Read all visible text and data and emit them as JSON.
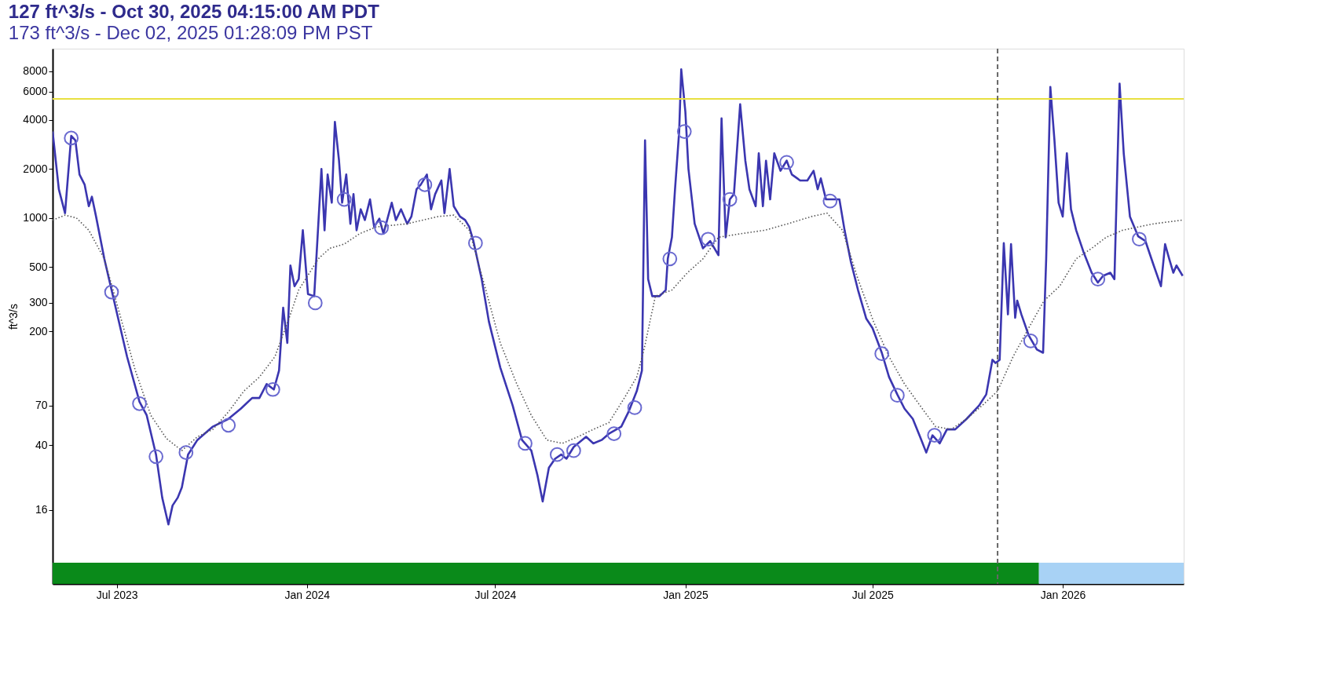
{
  "chart_data": {
    "type": "line",
    "title": "127 ft^3/s - Oct 30, 2025 04:15:00 AM PDT",
    "subtitle": "173 ft^3/s - Dec 02, 2025 01:28:09 PM PST",
    "ylabel": "ft^3/s",
    "xlim": [
      "2023-04-30",
      "2026-04-28"
    ],
    "xticks": [
      {
        "value": "2023-07-01",
        "label": "Jul 2023"
      },
      {
        "value": "2024-01-01",
        "label": "Jan 2024"
      },
      {
        "value": "2024-07-01",
        "label": "Jul 2024"
      },
      {
        "value": "2025-01-01",
        "label": "Jan 2025"
      },
      {
        "value": "2025-07-01",
        "label": "Jul 2025"
      },
      {
        "value": "2026-01-01",
        "label": "Jan 2026"
      }
    ],
    "ylim": [
      5.6,
      11000
    ],
    "yticks": [
      16,
      40,
      70,
      200,
      300,
      500,
      1000,
      2000,
      4000,
      6000,
      8000
    ],
    "log": "y",
    "grid": false,
    "legend": false,
    "ref_lines": [
      {
        "axis": "y",
        "value": 5400,
        "color": "#e8e040",
        "line_style": "solid"
      },
      {
        "axis": "x",
        "value": "2025-10-30",
        "color": "#666666",
        "line_style": "dashed"
      }
    ],
    "bands": [
      {
        "axis": "x",
        "from": "2023-04-30",
        "to": "2025-12-09",
        "color": "#0a8a1a"
      },
      {
        "axis": "x",
        "from": "2025-12-09",
        "to": "2026-04-28",
        "color": "#a8d2f5"
      }
    ],
    "series": [
      {
        "type": "line",
        "color": "#3b36b0",
        "line_style": "solid",
        "marker": "none",
        "x": [
          "2023-04-30",
          "2023-05-06",
          "2023-05-12",
          "2023-05-18",
          "2023-05-22",
          "2023-05-26",
          "2023-05-31",
          "2023-06-04",
          "2023-06-07",
          "2023-06-11",
          "2023-06-19",
          "2023-06-26",
          "2023-07-11",
          "2023-07-23",
          "2023-07-30",
          "2023-08-08",
          "2023-08-14",
          "2023-08-20",
          "2023-08-24",
          "2023-08-29",
          "2023-09-02",
          "2023-09-08",
          "2023-09-17",
          "2023-10-02",
          "2023-10-17",
          "2023-10-29",
          "2023-11-09",
          "2023-11-16",
          "2023-11-23",
          "2023-11-30",
          "2023-12-05",
          "2023-12-09",
          "2023-12-13",
          "2023-12-16",
          "2023-12-20",
          "2023-12-24",
          "2023-12-28",
          "2024-01-02",
          "2024-01-08",
          "2024-01-12",
          "2024-01-15",
          "2024-01-18",
          "2024-01-21",
          "2024-01-25",
          "2024-01-28",
          "2024-02-01",
          "2024-02-04",
          "2024-02-08",
          "2024-02-12",
          "2024-02-15",
          "2024-02-18",
          "2024-02-22",
          "2024-02-26",
          "2024-03-02",
          "2024-03-06",
          "2024-03-11",
          "2024-03-15",
          "2024-03-23",
          "2024-03-27",
          "2024-04-01",
          "2024-04-07",
          "2024-04-11",
          "2024-04-16",
          "2024-04-20",
          "2024-04-26",
          "2024-04-30",
          "2024-05-04",
          "2024-05-10",
          "2024-05-13",
          "2024-05-18",
          "2024-05-22",
          "2024-05-28",
          "2024-06-02",
          "2024-06-06",
          "2024-06-10",
          "2024-06-18",
          "2024-06-25",
          "2024-07-06",
          "2024-07-18",
          "2024-07-27",
          "2024-08-05",
          "2024-08-11",
          "2024-08-16",
          "2024-08-22",
          "2024-08-28",
          "2024-09-03",
          "2024-09-08",
          "2024-09-15",
          "2024-09-27",
          "2024-10-04",
          "2024-10-12",
          "2024-10-19",
          "2024-10-31",
          "2024-11-07",
          "2024-11-15",
          "2024-11-20",
          "2024-11-23",
          "2024-11-26",
          "2024-11-30",
          "2024-12-07",
          "2024-12-13",
          "2024-12-15",
          "2024-12-19",
          "2024-12-22",
          "2024-12-26",
          "2024-12-28",
          "2025-01-01",
          "2025-01-04",
          "2025-01-10",
          "2025-01-18",
          "2025-01-25",
          "2025-02-02",
          "2025-02-05",
          "2025-02-09",
          "2025-02-13",
          "2025-02-17",
          "2025-02-23",
          "2025-02-28",
          "2025-03-04",
          "2025-03-10",
          "2025-03-13",
          "2025-03-17",
          "2025-03-20",
          "2025-03-24",
          "2025-03-28",
          "2025-04-03",
          "2025-04-09",
          "2025-04-14",
          "2025-04-22",
          "2025-04-29",
          "2025-05-05",
          "2025-05-09",
          "2025-05-12",
          "2025-05-17",
          "2025-05-30",
          "2025-06-04",
          "2025-06-10",
          "2025-06-17",
          "2025-06-25",
          "2025-07-01",
          "2025-07-10",
          "2025-07-17",
          "2025-07-25",
          "2025-08-01",
          "2025-08-09",
          "2025-08-16",
          "2025-08-22",
          "2025-08-28",
          "2025-09-04",
          "2025-09-11",
          "2025-09-19",
          "2025-09-30",
          "2025-10-12",
          "2025-10-19",
          "2025-10-25",
          "2025-10-28",
          "2025-11-01",
          "2025-11-05",
          "2025-11-09",
          "2025-11-12",
          "2025-11-16",
          "2025-11-18",
          "2025-11-22",
          "2025-11-29",
          "2025-12-07",
          "2025-12-13",
          "2025-12-16",
          "2025-12-20",
          "2025-12-24",
          "2025-12-28",
          "2026-01-01",
          "2026-01-05",
          "2026-01-09",
          "2026-01-14",
          "2026-01-21",
          "2026-01-29",
          "2026-02-04",
          "2026-02-09",
          "2026-02-16",
          "2026-02-20",
          "2026-02-25",
          "2026-03-01",
          "2026-03-07",
          "2026-03-15",
          "2026-03-22",
          "2026-03-30",
          "2026-04-06",
          "2026-04-10",
          "2026-04-14",
          "2026-04-18",
          "2026-04-21",
          "2026-04-27"
        ],
        "values": [
          3400,
          1500,
          1070,
          3200,
          3000,
          1850,
          1600,
          1180,
          1350,
          1020,
          560,
          360,
          140,
          74,
          61,
          35,
          19,
          13,
          17,
          19,
          22,
          35,
          43,
          52,
          58,
          67,
          78,
          78,
          95,
          88,
          115,
          280,
          170,
          510,
          380,
          420,
          840,
          340,
          330,
          920,
          2000,
          840,
          1850,
          1240,
          3900,
          2250,
          1240,
          1850,
          920,
          1400,
          840,
          1130,
          970,
          1300,
          880,
          990,
          800,
          1240,
          970,
          1130,
          920,
          1020,
          1500,
          1600,
          1850,
          1130,
          1400,
          1700,
          1070,
          2000,
          1180,
          1020,
          970,
          880,
          720,
          420,
          230,
          120,
          70,
          43,
          37,
          26,
          18,
          29,
          33,
          35,
          33,
          39,
          45,
          41,
          43,
          47,
          52,
          64,
          86,
          115,
          3000,
          420,
          330,
          330,
          360,
          560,
          760,
          1500,
          3400,
          8200,
          4500,
          2000,
          920,
          650,
          720,
          590,
          4100,
          760,
          1300,
          1400,
          5000,
          2250,
          1500,
          1180,
          2500,
          1180,
          2250,
          1300,
          2500,
          1950,
          2250,
          1850,
          1700,
          1700,
          1950,
          1500,
          1750,
          1300,
          1300,
          840,
          540,
          360,
          240,
          210,
          148,
          105,
          82,
          67,
          58,
          45,
          36,
          46,
          41,
          50,
          50,
          58,
          70,
          82,
          134,
          128,
          134,
          700,
          255,
          690,
          243,
          310,
          255,
          190,
          155,
          148,
          560,
          6400,
          3000,
          1240,
          1020,
          2500,
          1130,
          840,
          620,
          460,
          400,
          440,
          460,
          420,
          6700,
          2500,
          1020,
          770,
          720,
          510,
          380,
          690,
          560,
          460,
          510,
          440
        ]
      },
      {
        "type": "line",
        "color": "#555555",
        "line_style": "dotted",
        "marker": "none",
        "x": [
          "2023-04-30",
          "2023-05-12",
          "2023-05-23",
          "2023-06-04",
          "2023-06-19",
          "2023-07-04",
          "2023-07-19",
          "2023-08-03",
          "2023-08-18",
          "2023-09-02",
          "2023-09-17",
          "2023-10-02",
          "2023-10-17",
          "2023-11-01",
          "2023-11-16",
          "2023-12-01",
          "2023-12-16",
          "2023-12-24",
          "2024-01-12",
          "2024-01-23",
          "2024-02-06",
          "2024-02-21",
          "2024-03-08",
          "2024-03-23",
          "2024-04-07",
          "2024-04-22",
          "2024-05-07",
          "2024-05-22",
          "2024-06-06",
          "2024-06-21",
          "2024-07-06",
          "2024-07-22",
          "2024-08-05",
          "2024-08-20",
          "2024-09-04",
          "2024-09-19",
          "2024-10-04",
          "2024-10-19",
          "2024-11-03",
          "2024-11-15",
          "2024-11-22",
          "2024-12-03",
          "2024-12-19",
          "2025-01-03",
          "2025-01-18",
          "2025-02-02",
          "2025-02-24",
          "2025-03-19",
          "2025-04-10",
          "2025-05-03",
          "2025-05-18",
          "2025-06-02",
          "2025-06-17",
          "2025-07-02",
          "2025-07-17",
          "2025-08-01",
          "2025-08-16",
          "2025-08-31",
          "2025-09-15",
          "2025-09-30",
          "2025-10-15",
          "2025-10-30",
          "2025-11-14",
          "2025-11-29",
          "2025-12-14",
          "2025-12-29",
          "2026-01-14",
          "2026-01-29",
          "2026-02-12",
          "2026-02-28",
          "2026-03-15",
          "2026-03-30",
          "2026-04-27"
        ],
        "values": [
          970,
          1040,
          1000,
          840,
          560,
          255,
          115,
          61,
          44,
          37,
          45,
          50,
          64,
          86,
          105,
          140,
          255,
          360,
          560,
          650,
          690,
          800,
          880,
          900,
          920,
          970,
          1020,
          1040,
          840,
          380,
          170,
          95,
          61,
          43,
          41,
          45,
          50,
          55,
          78,
          105,
          155,
          330,
          360,
          460,
          560,
          760,
          800,
          840,
          920,
          1020,
          1070,
          840,
          420,
          230,
          140,
          95,
          70,
          52,
          50,
          58,
          70,
          86,
          140,
          210,
          310,
          380,
          560,
          650,
          760,
          840,
          880,
          920,
          970
        ]
      },
      {
        "type": "scatter",
        "color": "#6a6ad0",
        "marker": "circle",
        "x": [
          "2023-05-18",
          "2023-06-26",
          "2023-07-23",
          "2023-08-08",
          "2023-09-06",
          "2023-10-17",
          "2023-11-29",
          "2024-01-09",
          "2024-02-06",
          "2024-03-13",
          "2024-04-24",
          "2024-06-12",
          "2024-07-30",
          "2024-08-30",
          "2024-09-15",
          "2024-10-24",
          "2024-11-13",
          "2024-12-17",
          "2024-12-31",
          "2025-01-23",
          "2025-02-13",
          "2025-04-09",
          "2025-05-21",
          "2025-07-10",
          "2025-07-25",
          "2025-08-30",
          "2025-12-01",
          "2026-02-04",
          "2026-03-16"
        ],
        "values": [
          3100,
          350,
          72,
          34,
          36,
          53,
          88,
          300,
          1300,
          870,
          1600,
          700,
          41,
          35,
          37,
          47,
          68,
          560,
          3400,
          740,
          1300,
          2200,
          1270,
          146,
          81,
          46,
          175,
          420,
          740
        ]
      }
    ]
  }
}
